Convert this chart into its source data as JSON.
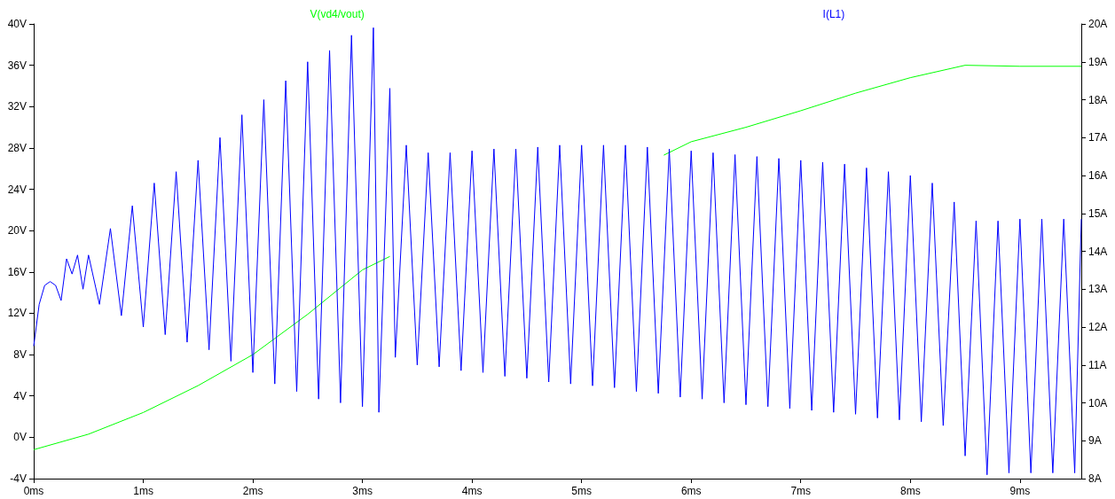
{
  "chart_data": {
    "type": "line",
    "legend": "top",
    "marker": "none",
    "line_style": "solid",
    "grid": false,
    "xlim": [
      0,
      9.56
    ],
    "xticks": [
      {
        "value": 0,
        "label": "0ms"
      },
      {
        "value": 1,
        "label": "1ms"
      },
      {
        "value": 2,
        "label": "2ms"
      },
      {
        "value": 3,
        "label": "3ms"
      },
      {
        "value": 4,
        "label": "4ms"
      },
      {
        "value": 5,
        "label": "5ms"
      },
      {
        "value": 6,
        "label": "6ms"
      },
      {
        "value": 7,
        "label": "7ms"
      },
      {
        "value": 8,
        "label": "8ms"
      },
      {
        "value": 9,
        "label": "9ms"
      }
    ],
    "ylim": [
      -4,
      40
    ],
    "yticks": [
      {
        "value": -4,
        "label": "-4V"
      },
      {
        "value": 0,
        "label": "0V"
      },
      {
        "value": 4,
        "label": "4V"
      },
      {
        "value": 8,
        "label": "8V"
      },
      {
        "value": 12,
        "label": "12V"
      },
      {
        "value": 16,
        "label": "16V"
      },
      {
        "value": 20,
        "label": "20V"
      },
      {
        "value": 24,
        "label": "24V"
      },
      {
        "value": 28,
        "label": "28V"
      },
      {
        "value": 32,
        "label": "32V"
      },
      {
        "value": 36,
        "label": "36V"
      },
      {
        "value": 40,
        "label": "40V"
      }
    ],
    "y2lim": [
      8,
      20
    ],
    "y2ticks": [
      {
        "value": 8,
        "label": "8A"
      },
      {
        "value": 9,
        "label": "9A"
      },
      {
        "value": 10,
        "label": "10A"
      },
      {
        "value": 11,
        "label": "11A"
      },
      {
        "value": 12,
        "label": "12A"
      },
      {
        "value": 13,
        "label": "13A"
      },
      {
        "value": 14,
        "label": "14A"
      },
      {
        "value": 15,
        "label": "15A"
      },
      {
        "value": 16,
        "label": "16A"
      },
      {
        "value": 17,
        "label": "17A"
      },
      {
        "value": 18,
        "label": "18A"
      },
      {
        "value": 19,
        "label": "19A"
      },
      {
        "value": 20,
        "label": "20A"
      }
    ],
    "series": [
      {
        "name": "V(vd4/vout)",
        "color": "#00ff00",
        "x": [
          0,
          0.5,
          1,
          1.5,
          2,
          2.5,
          3,
          3.25,
          4,
          5,
          5.75,
          6,
          6.5,
          7,
          7.5,
          8,
          8.5,
          9,
          9.56
        ],
        "values": [
          -1.2,
          0.3,
          2.4,
          5,
          8,
          11.9,
          16.2,
          17.5,
          null,
          null,
          27.3,
          28.6,
          30,
          31.6,
          33.3,
          34.8,
          36,
          35.9,
          35.9
        ]
      },
      {
        "name": "I(L1)",
        "color": "#0000ff",
        "axis": "y2",
        "x": [
          0,
          0.05,
          0.1,
          0.15,
          0.2,
          0.25,
          0.3,
          0.35,
          0.4,
          0.45,
          0.5,
          0.6,
          0.7,
          0.8,
          0.9,
          1.0,
          1.1,
          1.2,
          1.3,
          1.4,
          1.5,
          1.6,
          1.7,
          1.8,
          1.9,
          2.0,
          2.1,
          2.2,
          2.3,
          2.4,
          2.5,
          2.6,
          2.7,
          2.8,
          2.9,
          3.0,
          3.1,
          3.15,
          3.25,
          3.3,
          3.4,
          3.5,
          3.6,
          3.7,
          3.8,
          3.9,
          4.0,
          4.1,
          4.2,
          4.3,
          4.4,
          4.5,
          4.6,
          4.7,
          4.8,
          4.9,
          5.0,
          5.1,
          5.2,
          5.3,
          5.4,
          5.5,
          5.6,
          5.7,
          5.8,
          5.9,
          6.0,
          6.1,
          6.2,
          6.3,
          6.4,
          6.5,
          6.6,
          6.7,
          6.8,
          6.9,
          7.0,
          7.1,
          7.2,
          7.3,
          7.4,
          7.5,
          7.6,
          7.7,
          7.8,
          7.9,
          8.0,
          8.1,
          8.2,
          8.3,
          8.4,
          8.5,
          8.6,
          8.7,
          8.8,
          8.9,
          9.0,
          9.1,
          9.2,
          9.3,
          9.4,
          9.5,
          9.56
        ],
        "values": [
          11.5,
          12.6,
          13.1,
          13.2,
          13.1,
          12.7,
          13.8,
          13.4,
          13.9,
          13.0,
          13.9,
          12.6,
          14.6,
          12.3,
          15.2,
          12.0,
          15.8,
          11.8,
          16.1,
          11.6,
          16.4,
          11.4,
          17.0,
          11.1,
          17.6,
          10.8,
          18.0,
          10.5,
          18.5,
          10.3,
          19.0,
          10.1,
          19.3,
          10.0,
          19.7,
          9.9,
          19.9,
          9.75,
          18.3,
          11.2,
          16.8,
          11.0,
          16.6,
          10.95,
          16.6,
          10.85,
          16.65,
          10.8,
          16.7,
          10.7,
          16.7,
          10.65,
          16.75,
          10.55,
          16.8,
          10.5,
          16.8,
          10.45,
          16.8,
          10.4,
          16.8,
          10.3,
          16.75,
          10.25,
          16.7,
          10.15,
          16.65,
          10.1,
          16.6,
          10.0,
          16.55,
          9.95,
          16.5,
          9.9,
          16.45,
          9.85,
          16.4,
          9.8,
          16.35,
          9.75,
          16.3,
          9.7,
          16.2,
          9.6,
          16.1,
          9.55,
          16.0,
          9.5,
          15.8,
          9.4,
          15.3,
          8.6,
          14.8,
          8.1,
          14.8,
          8.15,
          14.85,
          8.15,
          14.85,
          8.15,
          14.85,
          8.15,
          14.85
        ]
      }
    ]
  }
}
